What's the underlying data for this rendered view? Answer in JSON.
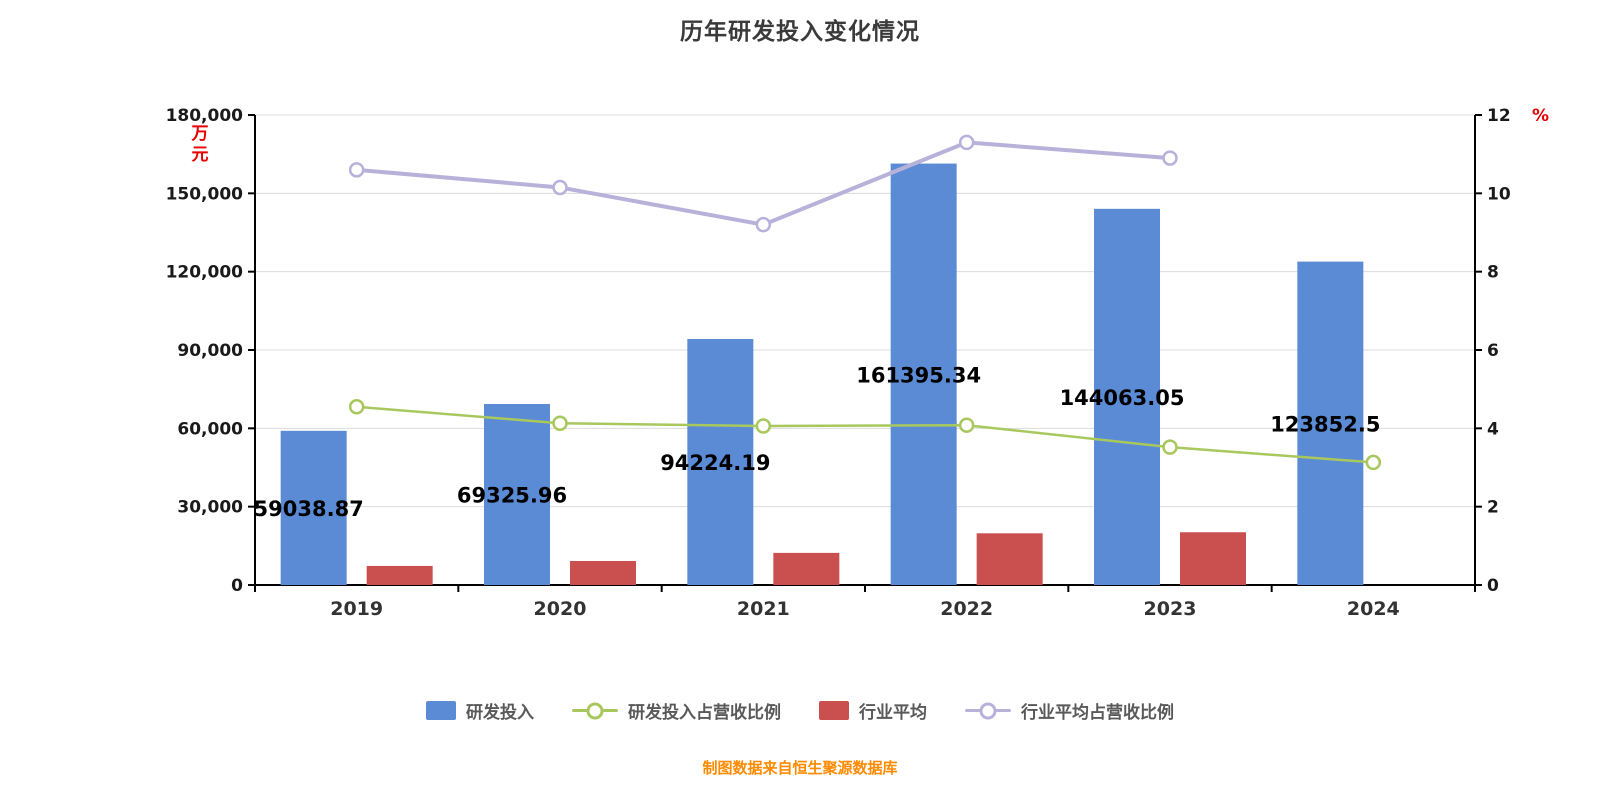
{
  "title": "历年研发投入变化情况",
  "source_note": "制图数据来自恒生聚源数据库",
  "colors": {
    "bar_rd": "#5B8BD4",
    "bar_industry": "#C9504E",
    "line_rd_ratio": "#A8C85E",
    "line_industry_ratio": "#B8B1DA",
    "axis_unit": "#E60000",
    "grid": "#DCDCDC",
    "axis": "#000000",
    "tick_label": "#1A1A1A",
    "year_label": "#333333",
    "value_label": "#000000",
    "legend_text": "#595959",
    "title_text": "#3A3A3A",
    "source_text": "#FF8A00"
  },
  "chart_data": {
    "type": "bar+line combo",
    "title": "历年研发投入变化情况",
    "categories": [
      "2019",
      "2020",
      "2021",
      "2022",
      "2023",
      "2024"
    ],
    "left_axis": {
      "unit": "万元",
      "min": 0,
      "max": 180000,
      "step": 30000,
      "tick_labels": [
        "0",
        "30,000",
        "60,000",
        "90,000",
        "120,000",
        "150,000",
        "180,000"
      ]
    },
    "right_axis": {
      "unit": "%",
      "min": 0,
      "max": 12,
      "step": 2,
      "tick_labels": [
        "0",
        "2",
        "4",
        "6",
        "8",
        "10",
        "12"
      ]
    },
    "series": [
      {
        "name": "研发投入",
        "type": "bar",
        "axis": "left",
        "color_key": "bar_rd",
        "values": [
          59038.87,
          69325.96,
          94224.19,
          161395.34,
          144063.05,
          123852.5
        ],
        "value_labels": [
          "59038.87",
          "69325.96",
          "94224.19",
          "161395.34",
          "144063.05",
          "123852.5"
        ]
      },
      {
        "name": "行业平均",
        "type": "bar",
        "axis": "left",
        "color_key": "bar_industry",
        "values": [
          7300,
          9200,
          12300,
          19800,
          20200,
          null
        ],
        "value_labels": null
      },
      {
        "name": "研发投入占营收比例",
        "type": "line",
        "axis": "right",
        "color_key": "line_rd_ratio",
        "values": [
          4.55,
          4.13,
          4.06,
          4.08,
          3.52,
          3.13
        ]
      },
      {
        "name": "行业平均占营收比例",
        "type": "line",
        "axis": "right",
        "color_key": "line_industry_ratio",
        "values": [
          10.6,
          10.15,
          9.2,
          11.3,
          10.9,
          null
        ]
      }
    ],
    "grid": true,
    "legend_position": "bottom"
  },
  "legend": [
    {
      "label": "研发投入",
      "swatch": "bar",
      "color_key": "bar_rd"
    },
    {
      "label": "研发投入占营收比例",
      "swatch": "line",
      "color_key": "line_rd_ratio"
    },
    {
      "label": "行业平均",
      "swatch": "bar",
      "color_key": "bar_industry"
    },
    {
      "label": "行业平均占营收比例",
      "swatch": "line",
      "color_key": "line_industry_ratio"
    }
  ]
}
